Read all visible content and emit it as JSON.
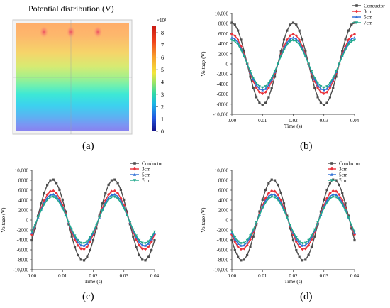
{
  "contour": {
    "title": "Potential distribution (V)",
    "colorbar_exponent": "×10³",
    "colorbar_ticks": [
      "8",
      "7",
      "6",
      "5",
      "4",
      "3",
      "2",
      "1",
      "0"
    ]
  },
  "panel_labels": [
    "(a)",
    "(b)",
    "(c)",
    "(d)"
  ],
  "colors": {
    "Conductor": "#4d4d4d",
    "3cm": "#e8313a",
    "5cm": "#2f6fd6",
    "7cm": "#21a98d"
  },
  "chart_data": [
    {
      "panel": "(b)",
      "type": "line",
      "xlabel": "Time (s)",
      "ylabel": "Voltage (V)",
      "xlim": [
        0,
        0.04
      ],
      "ylim": [
        -10000,
        10000
      ],
      "x_ticks": [
        "0.00",
        "0.01",
        "0.02",
        "0.03",
        "0.04"
      ],
      "y_ticks": [
        "10,000",
        "8000",
        "6000",
        "4000",
        "2000",
        "0",
        "-2000",
        "-4000",
        "-6000",
        "-8000",
        "-10,000"
      ],
      "legend": "top-right",
      "waveform": "cosine, 50 Hz, x from 0 to 0.04 s in 0.001 s steps",
      "series": [
        {
          "name": "Conductor",
          "amplitude": 8165,
          "phase_deg": 0
        },
        {
          "name": "3cm",
          "amplitude": 5900,
          "phase_deg": 0
        },
        {
          "name": "5cm",
          "amplitude": 5200,
          "phase_deg": 0
        },
        {
          "name": "7cm",
          "amplitude": 4700,
          "phase_deg": 0
        }
      ]
    },
    {
      "panel": "(c)",
      "type": "line",
      "xlabel": "Time (s)",
      "ylabel": "Voltage (V)",
      "xlim": [
        0,
        0.04
      ],
      "ylim": [
        -10000,
        10000
      ],
      "x_ticks": [
        "0.00",
        "0.01",
        "0.02",
        "0.03",
        "0.04"
      ],
      "y_ticks": [
        "10,000",
        "8000",
        "6000",
        "4000",
        "2000",
        "0",
        "-2000",
        "-4000",
        "-6000",
        "-8000",
        "-10,000"
      ],
      "legend": "top-right",
      "waveform": "cosine, 50 Hz, x from 0 to 0.04 s in 0.001 s steps",
      "series": [
        {
          "name": "Conductor",
          "amplitude": 8165,
          "phase_deg": -120
        },
        {
          "name": "3cm",
          "amplitude": 5900,
          "phase_deg": -120
        },
        {
          "name": "5cm",
          "amplitude": 5200,
          "phase_deg": -120
        },
        {
          "name": "7cm",
          "amplitude": 4700,
          "phase_deg": -120
        }
      ]
    },
    {
      "panel": "(d)",
      "type": "line",
      "xlabel": "Time (s)",
      "ylabel": "Voltage (V)",
      "xlim": [
        0,
        0.04
      ],
      "ylim": [
        -10000,
        10000
      ],
      "x_ticks": [
        "0.00",
        "0.01",
        "0.02",
        "0.03",
        "0.04"
      ],
      "y_ticks": [
        "10,000",
        "8000",
        "6000",
        "4000",
        "2000",
        "0",
        "-2000",
        "-4000",
        "-6000",
        "-8000",
        "-10,000"
      ],
      "legend": "top-right",
      "waveform": "cosine, 50 Hz, x from 0 to 0.04 s in 0.001 s steps",
      "series": [
        {
          "name": "Conductor",
          "amplitude": 8165,
          "phase_deg": 120
        },
        {
          "name": "3cm",
          "amplitude": 5900,
          "phase_deg": 120
        },
        {
          "name": "5cm",
          "amplitude": 5200,
          "phase_deg": 120
        },
        {
          "name": "7cm",
          "amplitude": 4700,
          "phase_deg": 120
        }
      ]
    }
  ]
}
